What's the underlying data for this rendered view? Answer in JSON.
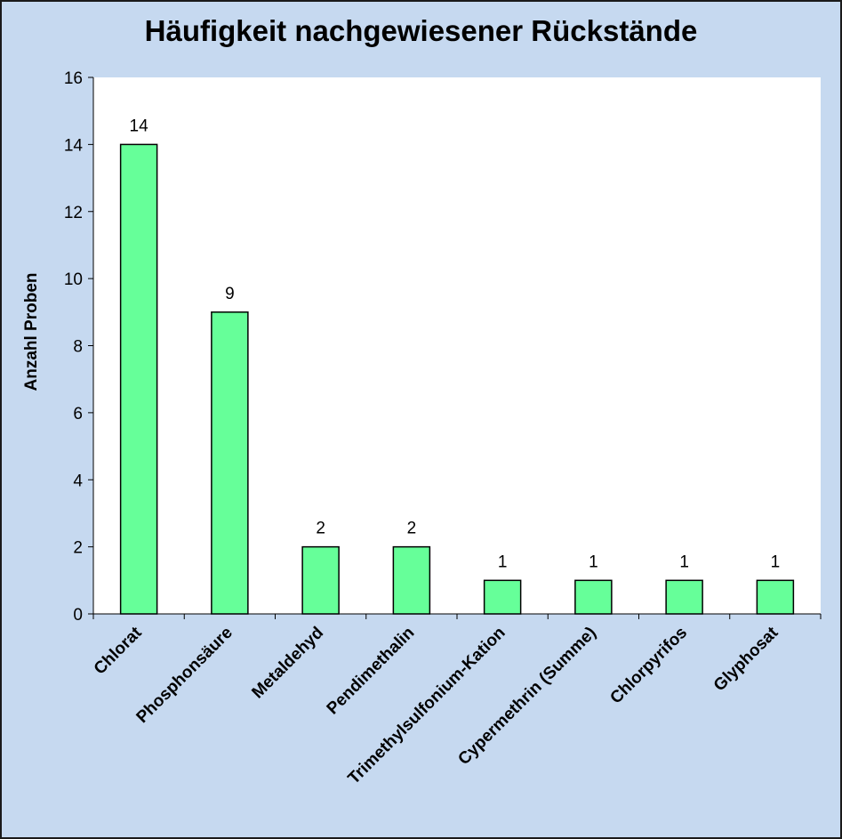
{
  "chart_data": {
    "type": "bar",
    "title": "Häufigkeit nachgewiesener Rückstände",
    "xlabel": "",
    "ylabel": "Anzahl Proben",
    "categories": [
      "Chlorat",
      "Phosphonsäure",
      "Metaldehyd",
      "Pendimethalin",
      "Trimethylsulfonium-Kation",
      "Cypermethrin (Summe)",
      "Chlorpyrifos",
      "Glyphosat"
    ],
    "values": [
      14,
      9,
      2,
      2,
      1,
      1,
      1,
      1
    ],
    "ylim": [
      0,
      16
    ],
    "yticks": [
      0,
      2,
      4,
      6,
      8,
      10,
      12,
      14,
      16
    ],
    "grid": false,
    "legend": "none",
    "colors": {
      "bar": "#66ff99",
      "plot_bg": "#ffffff",
      "frame_bg": "#c6d9f0"
    }
  }
}
